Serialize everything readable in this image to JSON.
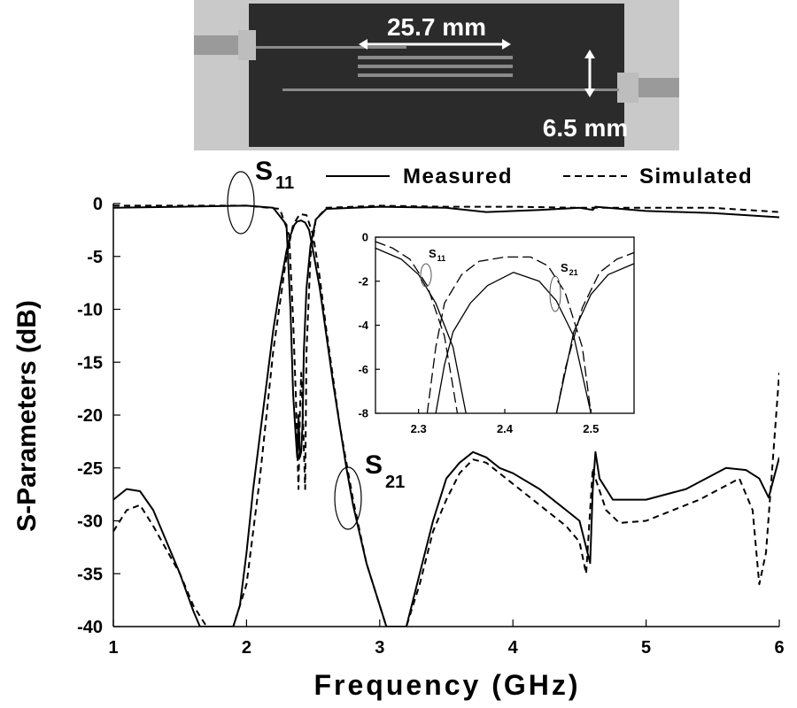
{
  "photo": {
    "length_label": "25.7 mm",
    "width_label": "6.5 mm"
  },
  "chart_data": [
    {
      "type": "line",
      "title": "",
      "xlabel": "Frequency (GHz)",
      "ylabel": "S-Parameters (dB)",
      "xlim": [
        1,
        6
      ],
      "ylim": [
        -40,
        0
      ],
      "x_ticks": [
        "1",
        "2",
        "3",
        "4",
        "5",
        "6"
      ],
      "y_ticks": [
        "0",
        "-5",
        "-10",
        "-15",
        "-20",
        "-25",
        "-30",
        "-35",
        "-40"
      ],
      "grid": false,
      "legend": {
        "placement": "top-right",
        "entries": [
          "Measured",
          "Simulated"
        ]
      },
      "annotations": {
        "s11": "S",
        "s11_sub": "11",
        "s21": "S",
        "s21_sub": "21"
      },
      "series": [
        {
          "name": "Measured",
          "style": "solid",
          "s11": [
            [
              1,
              -0.4
            ],
            [
              1.5,
              -0.3
            ],
            [
              2,
              -0.2
            ],
            [
              2.2,
              -0.4
            ],
            [
              2.3,
              -2.0
            ],
            [
              2.33,
              -10
            ],
            [
              2.35,
              -18
            ],
            [
              2.37,
              -22
            ],
            [
              2.38,
              -24
            ],
            [
              2.39,
              -20
            ],
            [
              2.4,
              -24
            ],
            [
              2.41,
              -23.5
            ],
            [
              2.42,
              -21
            ],
            [
              2.43,
              -14
            ],
            [
              2.45,
              -8
            ],
            [
              2.48,
              -4
            ],
            [
              2.52,
              -1.5
            ],
            [
              2.6,
              -0.5
            ],
            [
              3,
              -0.3
            ],
            [
              3.5,
              -0.4
            ],
            [
              3.8,
              -0.8
            ],
            [
              4.2,
              -0.6
            ],
            [
              4.5,
              -0.4
            ],
            [
              4.6,
              -0.6
            ],
            [
              4.62,
              -0.3
            ],
            [
              5,
              -0.7
            ],
            [
              5.5,
              -0.9
            ],
            [
              6,
              -1.3
            ]
          ],
          "s21": [
            [
              1,
              -28
            ],
            [
              1.1,
              -27
            ],
            [
              1.2,
              -27.2
            ],
            [
              1.3,
              -29
            ],
            [
              1.4,
              -32
            ],
            [
              1.5,
              -35
            ],
            [
              1.6,
              -38.5
            ],
            [
              1.65,
              -40
            ],
            [
              1.9,
              -40
            ],
            [
              1.95,
              -38
            ],
            [
              2.0,
              -33
            ],
            [
              2.05,
              -27
            ],
            [
              2.1,
              -22
            ],
            [
              2.15,
              -17
            ],
            [
              2.2,
              -12
            ],
            [
              2.25,
              -8
            ],
            [
              2.3,
              -4.5
            ],
            [
              2.33,
              -3
            ],
            [
              2.36,
              -2
            ],
            [
              2.38,
              -1.7
            ],
            [
              2.41,
              -1.6
            ],
            [
              2.44,
              -1.8
            ],
            [
              2.47,
              -2.5
            ],
            [
              2.5,
              -4.5
            ],
            [
              2.55,
              -8
            ],
            [
              2.6,
              -12.5
            ],
            [
              2.65,
              -17
            ],
            [
              2.7,
              -21
            ],
            [
              2.75,
              -25
            ],
            [
              2.8,
              -28.5
            ],
            [
              2.9,
              -34
            ],
            [
              3.0,
              -38
            ],
            [
              3.05,
              -40
            ],
            [
              3.2,
              -40
            ],
            [
              3.3,
              -35
            ],
            [
              3.4,
              -30
            ],
            [
              3.5,
              -26
            ],
            [
              3.6,
              -24.5
            ],
            [
              3.7,
              -23.5
            ],
            [
              3.8,
              -24
            ],
            [
              3.9,
              -25
            ],
            [
              4.0,
              -25.5
            ],
            [
              4.2,
              -27
            ],
            [
              4.4,
              -29
            ],
            [
              4.5,
              -30
            ],
            [
              4.58,
              -34
            ],
            [
              4.6,
              -27
            ],
            [
              4.62,
              -23.5
            ],
            [
              4.65,
              -26
            ],
            [
              4.75,
              -28
            ],
            [
              5,
              -28
            ],
            [
              5.3,
              -27
            ],
            [
              5.6,
              -25
            ],
            [
              5.75,
              -25.2
            ],
            [
              5.85,
              -26
            ],
            [
              5.92,
              -27.8
            ],
            [
              6,
              -24
            ]
          ]
        },
        {
          "name": "Simulated",
          "style": "dashed",
          "s11": [
            [
              1,
              -0.2
            ],
            [
              2,
              -0.2
            ],
            [
              2.25,
              -0.5
            ],
            [
              2.32,
              -3
            ],
            [
              2.35,
              -11
            ],
            [
              2.37,
              -18
            ],
            [
              2.39,
              -27
            ],
            [
              2.4,
              -20
            ],
            [
              2.41,
              -16
            ],
            [
              2.42,
              -19
            ],
            [
              2.44,
              -27
            ],
            [
              2.45,
              -14
            ],
            [
              2.48,
              -5
            ],
            [
              2.52,
              -1.5
            ],
            [
              2.6,
              -0.4
            ],
            [
              3,
              -0.2
            ],
            [
              3.5,
              -0.3
            ],
            [
              4,
              -0.3
            ],
            [
              4.5,
              -0.4
            ],
            [
              5,
              -0.4
            ],
            [
              5.5,
              -0.4
            ],
            [
              6,
              -0.8
            ]
          ],
          "s21": [
            [
              1,
              -31
            ],
            [
              1.1,
              -29
            ],
            [
              1.2,
              -28.5
            ],
            [
              1.3,
              -30.5
            ],
            [
              1.5,
              -35
            ],
            [
              1.6,
              -38
            ],
            [
              1.7,
              -40
            ],
            [
              1.9,
              -40
            ],
            [
              2.0,
              -36
            ],
            [
              2.1,
              -26
            ],
            [
              2.2,
              -14
            ],
            [
              2.3,
              -5
            ],
            [
              2.35,
              -2
            ],
            [
              2.4,
              -1
            ],
            [
              2.45,
              -1.1
            ],
            [
              2.5,
              -3
            ],
            [
              2.55,
              -7
            ],
            [
              2.6,
              -12
            ],
            [
              2.7,
              -21
            ],
            [
              2.8,
              -28
            ],
            [
              2.9,
              -34
            ],
            [
              3.0,
              -38
            ],
            [
              3.05,
              -40
            ],
            [
              3.2,
              -40
            ],
            [
              3.3,
              -36
            ],
            [
              3.4,
              -31
            ],
            [
              3.5,
              -28
            ],
            [
              3.6,
              -25.5
            ],
            [
              3.7,
              -24.2
            ],
            [
              3.8,
              -24.5
            ],
            [
              4.0,
              -26.5
            ],
            [
              4.2,
              -28.5
            ],
            [
              4.4,
              -30.5
            ],
            [
              4.5,
              -32
            ],
            [
              4.55,
              -35
            ],
            [
              4.6,
              -25
            ],
            [
              4.62,
              -26
            ],
            [
              4.7,
              -29
            ],
            [
              4.8,
              -30.2
            ],
            [
              5,
              -30
            ],
            [
              5.4,
              -28
            ],
            [
              5.7,
              -26
            ],
            [
              5.8,
              -29
            ],
            [
              5.85,
              -36
            ],
            [
              5.9,
              -33
            ],
            [
              6,
              -16
            ]
          ]
        }
      ]
    },
    {
      "type": "line",
      "title": "",
      "xlabel": "",
      "ylabel": "",
      "xlim": [
        2.25,
        2.55
      ],
      "ylim": [
        -8,
        0
      ],
      "x_ticks": [
        "2.3",
        "2.4",
        "2.5"
      ],
      "y_ticks": [
        "0",
        "-2",
        "-4",
        "-6",
        "-8"
      ],
      "grid": false,
      "annotations": {
        "s11": "S",
        "s11_sub": "11",
        "s21": "S",
        "s21_sub": "21"
      },
      "series": [
        {
          "name": "Measured",
          "style": "solid",
          "s11": [
            [
              2.25,
              -0.5
            ],
            [
              2.28,
              -1.0
            ],
            [
              2.3,
              -1.7
            ],
            [
              2.32,
              -3.0
            ],
            [
              2.34,
              -5.0
            ],
            [
              2.355,
              -8
            ]
          ],
          "s21": [
            [
              2.32,
              -8
            ],
            [
              2.33,
              -5.8
            ],
            [
              2.34,
              -4.3
            ],
            [
              2.36,
              -3.0
            ],
            [
              2.38,
              -2.2
            ],
            [
              2.41,
              -1.6
            ],
            [
              2.44,
              -2.0
            ],
            [
              2.46,
              -2.9
            ],
            [
              2.48,
              -4.5
            ],
            [
              2.5,
              -8
            ]
          ],
          "s11_b": [
            [
              2.46,
              -8
            ],
            [
              2.48,
              -4.3
            ],
            [
              2.5,
              -2.6
            ],
            [
              2.52,
              -1.7
            ],
            [
              2.55,
              -1.2
            ]
          ]
        },
        {
          "name": "Simulated",
          "style": "dashed",
          "s11": [
            [
              2.25,
              -0.2
            ],
            [
              2.27,
              -0.5
            ],
            [
              2.29,
              -1.0
            ],
            [
              2.31,
              -2.2
            ],
            [
              2.33,
              -4.5
            ],
            [
              2.345,
              -8
            ]
          ],
          "s21": [
            [
              2.31,
              -8
            ],
            [
              2.32,
              -5
            ],
            [
              2.33,
              -3
            ],
            [
              2.35,
              -1.7
            ],
            [
              2.37,
              -1.1
            ],
            [
              2.4,
              -0.9
            ],
            [
              2.43,
              -0.9
            ],
            [
              2.45,
              -1.3
            ],
            [
              2.47,
              -2.5
            ],
            [
              2.49,
              -5
            ],
            [
              2.5,
              -8
            ]
          ],
          "s11_b": [
            [
              2.46,
              -8
            ],
            [
              2.47,
              -6
            ],
            [
              2.49,
              -3.2
            ],
            [
              2.51,
              -1.6
            ],
            [
              2.53,
              -1.0
            ],
            [
              2.55,
              -0.7
            ]
          ]
        }
      ]
    }
  ]
}
